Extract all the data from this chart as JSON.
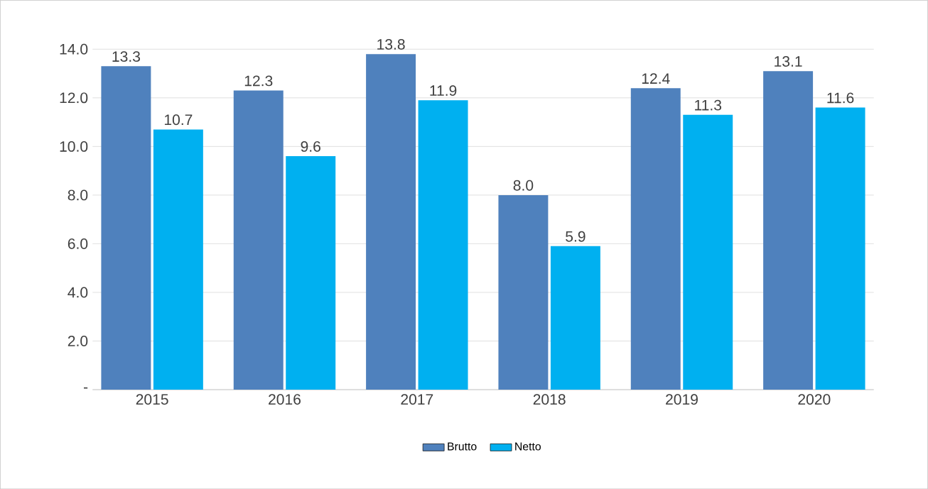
{
  "chart_data": {
    "type": "bar",
    "categories": [
      "2015",
      "2016",
      "2017",
      "2018",
      "2019",
      "2020"
    ],
    "series": [
      {
        "name": "Brutto",
        "color": "#4f81bd",
        "values": [
          13.3,
          12.3,
          13.8,
          8.0,
          12.4,
          13.1
        ],
        "value_labels": [
          "13.3",
          "12.3",
          "13.8",
          "8.0",
          "12.4",
          "13.1"
        ]
      },
      {
        "name": "Netto",
        "color": "#00b0f0",
        "values": [
          10.7,
          9.6,
          11.9,
          5.9,
          11.3,
          11.6
        ],
        "value_labels": [
          "10.7",
          "9.6",
          "11.9",
          "5.9",
          "11.3",
          "11.6"
        ]
      }
    ],
    "ylim": [
      0,
      14
    ],
    "yticks": [
      {
        "value": 0,
        "label": "-"
      },
      {
        "value": 2,
        "label": "2.0"
      },
      {
        "value": 4,
        "label": "4.0"
      },
      {
        "value": 6,
        "label": "6.0"
      },
      {
        "value": 8,
        "label": "8.0"
      },
      {
        "value": 10,
        "label": "10.0"
      },
      {
        "value": 12,
        "label": "12.0"
      },
      {
        "value": 14,
        "label": "14.0"
      }
    ],
    "grid": "y",
    "legend": "bottom"
  }
}
